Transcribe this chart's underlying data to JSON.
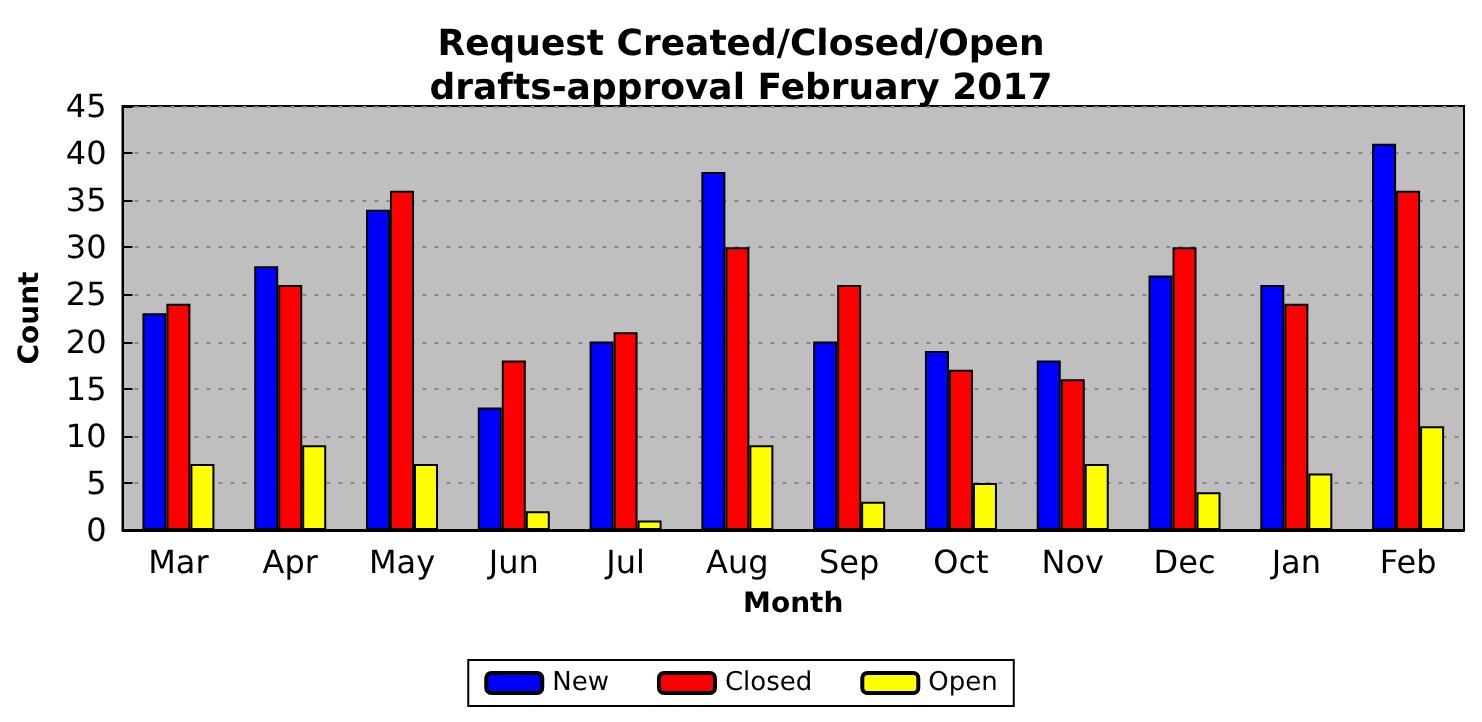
{
  "chart_data": {
    "type": "bar",
    "title": "Request Created/Closed/Open\ndrafts-approval February 2017",
    "xlabel": "Month",
    "ylabel": "Count",
    "categories": [
      "Mar",
      "Apr",
      "May",
      "Jun",
      "Jul",
      "Aug",
      "Sep",
      "Oct",
      "Nov",
      "Dec",
      "Jan",
      "Feb"
    ],
    "series": [
      {
        "name": "New",
        "color": "#0000ff",
        "values": [
          23,
          28,
          34,
          13,
          20,
          38,
          20,
          19,
          18,
          27,
          26,
          41
        ]
      },
      {
        "name": "Closed",
        "color": "#ff0000",
        "values": [
          24,
          26,
          36,
          18,
          21,
          30,
          26,
          17,
          16,
          30,
          24,
          36
        ]
      },
      {
        "name": "Open",
        "color": "#ffff00",
        "values": [
          7,
          9,
          7,
          2,
          1,
          9,
          3,
          5,
          7,
          4,
          6,
          11
        ]
      }
    ],
    "ylim": [
      0,
      45
    ],
    "yticks": [
      0,
      5,
      10,
      15,
      20,
      25,
      30,
      35,
      40,
      45
    ],
    "grid": "y",
    "legend": "bottom"
  }
}
